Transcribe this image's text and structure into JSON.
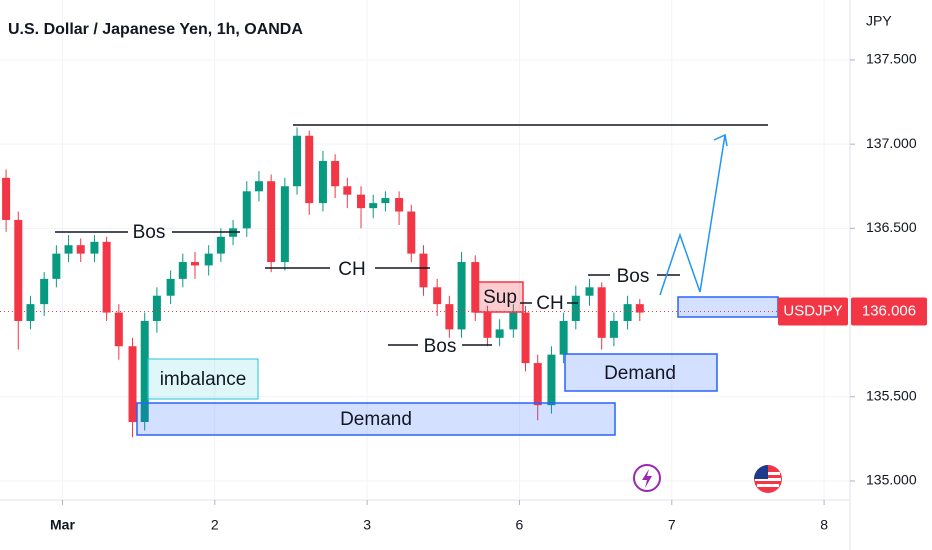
{
  "chart_data": {
    "type": "candlestick",
    "title": "U.S. Dollar / Japanese Yen, 1h, OANDA",
    "currency": "JPY",
    "x": [
      -0.37,
      -0.29,
      -0.21,
      -0.12,
      -0.04,
      0.04,
      0.12,
      0.21,
      0.29,
      0.37,
      0.46,
      0.54,
      0.62,
      0.71,
      0.79,
      0.87,
      0.96,
      1.04,
      1.12,
      1.21,
      1.29,
      1.37,
      1.46,
      1.54,
      1.62,
      1.71,
      1.79,
      1.87,
      1.96,
      2.04,
      2.12,
      2.21,
      2.29,
      2.37,
      2.46,
      2.54,
      2.62,
      2.71,
      2.79,
      2.87,
      2.96,
      3.04,
      3.12,
      3.21,
      3.29,
      3.37,
      3.46,
      3.54,
      3.62,
      3.71,
      3.79
    ],
    "open": [
      136.8,
      136.55,
      135.95,
      136.05,
      136.2,
      136.35,
      136.4,
      136.35,
      136.42,
      136.0,
      135.8,
      135.35,
      135.95,
      136.1,
      136.2,
      136.3,
      136.28,
      136.35,
      136.45,
      136.5,
      136.72,
      136.78,
      136.3,
      136.75,
      137.05,
      136.65,
      136.9,
      136.75,
      136.7,
      136.62,
      136.65,
      136.68,
      136.6,
      136.35,
      136.15,
      136.05,
      135.9,
      136.3,
      136.0,
      135.85,
      135.9,
      136.0,
      135.7,
      135.45,
      135.75,
      135.95,
      136.1,
      136.15,
      135.85,
      135.95,
      136.05
    ],
    "high": [
      136.85,
      136.6,
      136.1,
      136.24,
      136.4,
      136.46,
      136.44,
      136.46,
      136.45,
      136.05,
      135.85,
      136.0,
      136.15,
      136.25,
      136.35,
      136.36,
      136.4,
      136.5,
      136.55,
      136.78,
      136.84,
      136.82,
      136.8,
      137.1,
      137.08,
      136.96,
      136.94,
      136.8,
      136.75,
      136.7,
      136.72,
      136.72,
      136.64,
      136.4,
      136.2,
      136.1,
      136.36,
      136.34,
      136.04,
      135.96,
      136.05,
      136.04,
      135.75,
      135.8,
      136.0,
      136.16,
      136.2,
      136.18,
      136.0,
      136.1,
      136.08
    ],
    "low": [
      136.48,
      135.78,
      135.9,
      135.98,
      136.15,
      136.3,
      136.3,
      136.3,
      135.95,
      135.72,
      135.26,
      135.3,
      135.88,
      136.05,
      136.15,
      136.2,
      136.22,
      136.3,
      136.4,
      136.45,
      136.66,
      136.24,
      136.25,
      136.7,
      136.58,
      136.6,
      136.68,
      136.62,
      136.5,
      136.56,
      136.6,
      136.52,
      136.3,
      136.1,
      135.98,
      135.85,
      135.85,
      135.95,
      135.8,
      135.8,
      135.85,
      135.65,
      135.36,
      135.4,
      135.7,
      135.9,
      136.04,
      135.78,
      135.8,
      135.9,
      135.95
    ],
    "close": [
      136.55,
      135.95,
      136.05,
      136.2,
      136.35,
      136.4,
      136.35,
      136.42,
      136.0,
      135.8,
      135.35,
      135.95,
      136.1,
      136.2,
      136.3,
      136.28,
      136.35,
      136.45,
      136.5,
      136.72,
      136.78,
      136.3,
      136.75,
      137.05,
      136.65,
      136.9,
      136.75,
      136.7,
      136.62,
      136.65,
      136.68,
      136.6,
      136.35,
      136.15,
      136.05,
      135.9,
      136.3,
      136.0,
      135.85,
      135.9,
      136.0,
      135.7,
      135.45,
      135.75,
      135.95,
      136.1,
      136.15,
      135.85,
      135.95,
      136.05,
      136.0
    ],
    "colors": {
      "up": "#089981",
      "down": "#f23645"
    },
    "xlim": [
      -0.41,
      5.17
    ],
    "xticks": [
      {
        "value": 0,
        "label": "Mar"
      },
      {
        "value": 1,
        "label": "2"
      },
      {
        "value": 2,
        "label": "3"
      },
      {
        "value": 3,
        "label": "6"
      },
      {
        "value": 4,
        "label": "7"
      },
      {
        "value": 5,
        "label": "8"
      }
    ],
    "ylim": [
      134.887,
      137.856
    ],
    "yticks": [
      {
        "value": 135,
        "label": "135.000"
      },
      {
        "value": 135.5,
        "label": "135.500"
      },
      {
        "value": 136.5,
        "label": "136.500"
      },
      {
        "value": 137,
        "label": "137.000"
      },
      {
        "value": 137.5,
        "label": "137.500"
      }
    ],
    "grid": true,
    "last_price": {
      "symbol": "USDJPY",
      "value": 136.006
    },
    "annotations": [
      "Bos",
      "CH",
      "Bos",
      "Sup",
      "CH",
      "Bos",
      "imbalance",
      "Demand",
      "Demand"
    ]
  }
}
